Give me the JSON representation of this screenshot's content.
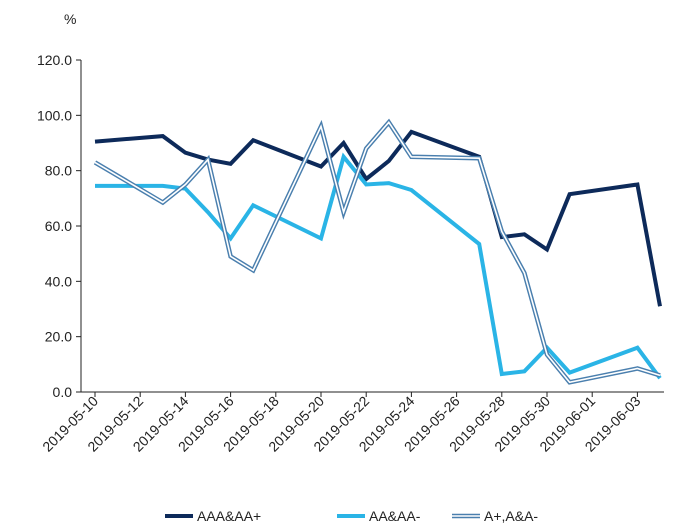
{
  "chart_data": {
    "type": "line",
    "unit_label": "%",
    "ylim": [
      0,
      120
    ],
    "y_ticks": [
      "0.0",
      "20.0",
      "40.0",
      "60.0",
      "80.0",
      "100.0",
      "120.0"
    ],
    "x_ticks": [
      "2019-05-10",
      "2019-05-12",
      "2019-05-14",
      "2019-05-16",
      "2019-05-18",
      "2019-05-20",
      "2019-05-22",
      "2019-05-24",
      "2019-05-26",
      "2019-05-28",
      "2019-05-30",
      "2019-06-01",
      "2019-06-03"
    ],
    "grid": false,
    "legend_position": "bottom",
    "x": [
      "2019-05-10",
      "2019-05-13",
      "2019-05-14",
      "2019-05-15",
      "2019-05-16",
      "2019-05-17",
      "2019-05-20",
      "2019-05-21",
      "2019-05-22",
      "2019-05-23",
      "2019-05-24",
      "2019-05-27",
      "2019-05-28",
      "2019-05-29",
      "2019-05-30",
      "2019-05-31",
      "2019-06-03",
      "2019-06-04"
    ],
    "series": [
      {
        "name": "AAA&AA+",
        "color": "#0d2a5a",
        "style": "solid",
        "values": [
          90.5,
          92.5,
          86.5,
          84.0,
          82.5,
          91.0,
          81.5,
          90.0,
          77.0,
          83.5,
          94.0,
          85.0,
          56.0,
          57.0,
          51.5,
          71.5,
          75.0,
          31.0
        ]
      },
      {
        "name": "AA&AA-",
        "color": "#2ab4e6",
        "style": "solid",
        "values": [
          74.5,
          74.5,
          73.5,
          65.0,
          55.5,
          67.5,
          55.5,
          85.0,
          75.0,
          75.5,
          73.0,
          53.5,
          6.5,
          7.5,
          16.0,
          7.0,
          16.0,
          5.0
        ]
      },
      {
        "name": "A+,A&A-",
        "color": "#4a7fae",
        "style": "double",
        "values": [
          83.0,
          68.5,
          75.0,
          84.0,
          49.0,
          44.0,
          96.0,
          65.0,
          88.0,
          97.5,
          85.0,
          84.5,
          58.0,
          43.0,
          13.5,
          3.5,
          8.5,
          6.0
        ]
      }
    ]
  }
}
